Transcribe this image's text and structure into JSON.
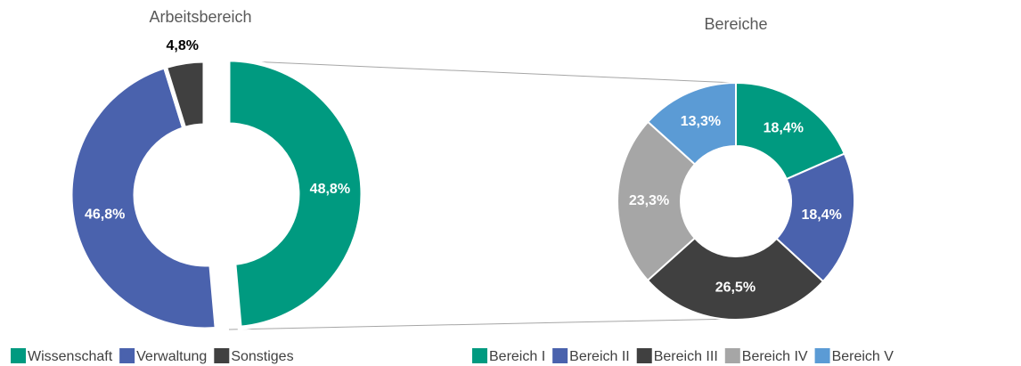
{
  "chart_data": [
    {
      "type": "donut",
      "title": "Arbeitsbereich",
      "categories": [
        "Wissenschaft",
        "Verwaltung",
        "Sonstiges"
      ],
      "values": [
        48.8,
        46.8,
        4.8
      ],
      "value_labels": [
        "48,8%",
        "46,8%",
        "4,8%"
      ],
      "colors": [
        "#009a80",
        "#4a62ad",
        "#404040"
      ],
      "legend": "bottom"
    },
    {
      "type": "donut",
      "title": "Bereiche",
      "categories": [
        "Bereich I",
        "Bereich II",
        "Bereich III",
        "Bereich IV",
        "Bereich V"
      ],
      "values": [
        18.4,
        18.4,
        26.5,
        23.3,
        13.3
      ],
      "value_labels": [
        "18,4%",
        "18,4%",
        "26,5%",
        "23,3%",
        "13,3%"
      ],
      "colors": [
        "#009a80",
        "#4a62ad",
        "#404040",
        "#a6a6a6",
        "#5b9bd5"
      ],
      "legend": "bottom"
    }
  ]
}
